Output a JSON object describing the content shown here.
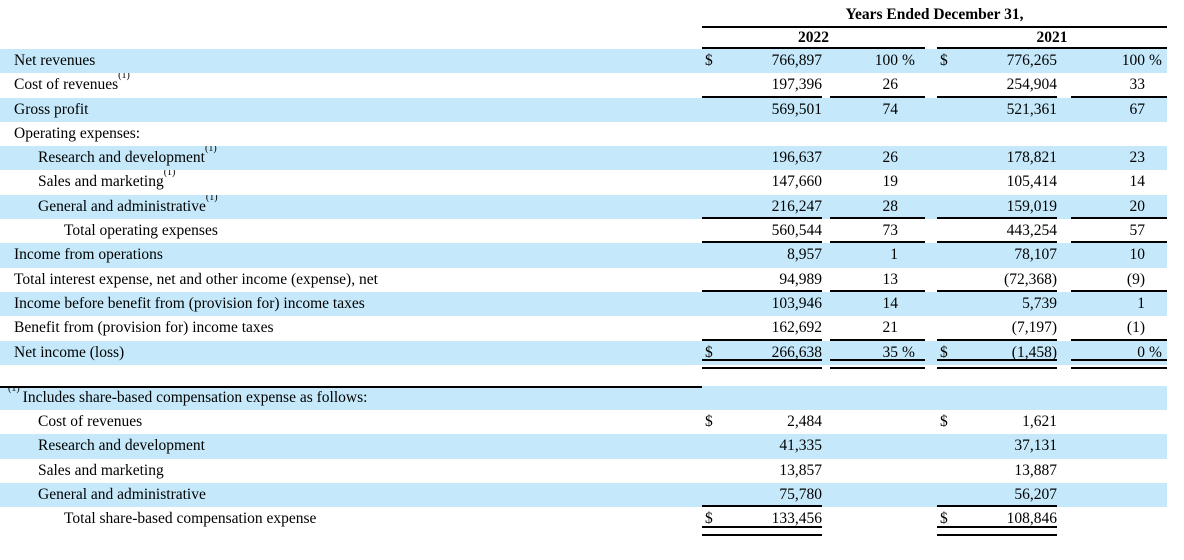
{
  "colors": {
    "row_highlight": "#c5e9fa",
    "rule_color": "#000000"
  },
  "table": {
    "period_header": "Years Ended December 31,",
    "year_columns": [
      "2022",
      "2021"
    ],
    "rows": [
      {
        "label": "Net revenues",
        "sup": "",
        "indent": 0,
        "highlight": true,
        "rule": "none",
        "y2022": {
          "dollar": "$",
          "value": "766,897",
          "pct": "100",
          "pct_sign": "%"
        },
        "y2021": {
          "dollar": "$",
          "value": "776,265",
          "pct": "100",
          "pct_sign": "%"
        }
      },
      {
        "label": "Cost of revenues",
        "sup": "(1)",
        "indent": 0,
        "highlight": false,
        "rule": "single",
        "y2022": {
          "dollar": "",
          "value": "197,396",
          "pct": "26",
          "pct_sign": ""
        },
        "y2021": {
          "dollar": "",
          "value": "254,904",
          "pct": "33",
          "pct_sign": ""
        }
      },
      {
        "label": "Gross profit",
        "sup": "",
        "indent": 0,
        "highlight": true,
        "rule": "none",
        "y2022": {
          "dollar": "",
          "value": "569,501",
          "pct": "74",
          "pct_sign": ""
        },
        "y2021": {
          "dollar": "",
          "value": "521,361",
          "pct": "67",
          "pct_sign": ""
        }
      },
      {
        "label": "Operating expenses:",
        "sup": "",
        "indent": 0,
        "highlight": false,
        "rule": "none",
        "y2022": {
          "dollar": "",
          "value": "",
          "pct": "",
          "pct_sign": ""
        },
        "y2021": {
          "dollar": "",
          "value": "",
          "pct": "",
          "pct_sign": ""
        }
      },
      {
        "label": "Research and development",
        "sup": "(1)",
        "indent": 1,
        "highlight": true,
        "rule": "none",
        "y2022": {
          "dollar": "",
          "value": "196,637",
          "pct": "26",
          "pct_sign": ""
        },
        "y2021": {
          "dollar": "",
          "value": "178,821",
          "pct": "23",
          "pct_sign": ""
        }
      },
      {
        "label": "Sales and marketing",
        "sup": "(1)",
        "indent": 1,
        "highlight": false,
        "rule": "none",
        "y2022": {
          "dollar": "",
          "value": "147,660",
          "pct": "19",
          "pct_sign": ""
        },
        "y2021": {
          "dollar": "",
          "value": "105,414",
          "pct": "14",
          "pct_sign": ""
        }
      },
      {
        "label": "General and administrative",
        "sup": "(1)",
        "indent": 1,
        "highlight": true,
        "rule": "single",
        "y2022": {
          "dollar": "",
          "value": "216,247",
          "pct": "28",
          "pct_sign": ""
        },
        "y2021": {
          "dollar": "",
          "value": "159,019",
          "pct": "20",
          "pct_sign": ""
        }
      },
      {
        "label": "Total operating expenses",
        "sup": "",
        "indent": 2,
        "highlight": false,
        "rule": "single",
        "y2022": {
          "dollar": "",
          "value": "560,544",
          "pct": "73",
          "pct_sign": ""
        },
        "y2021": {
          "dollar": "",
          "value": "443,254",
          "pct": "57",
          "pct_sign": ""
        }
      },
      {
        "label": "Income from operations",
        "sup": "",
        "indent": 0,
        "highlight": true,
        "rule": "none",
        "y2022": {
          "dollar": "",
          "value": "8,957",
          "pct": "1",
          "pct_sign": ""
        },
        "y2021": {
          "dollar": "",
          "value": "78,107",
          "pct": "10",
          "pct_sign": ""
        }
      },
      {
        "label": "Total interest expense, net and other income (expense), net",
        "sup": "",
        "indent": 0,
        "highlight": false,
        "rule": "single",
        "y2022": {
          "dollar": "",
          "value": "94,989",
          "pct": "13",
          "pct_sign": ""
        },
        "y2021": {
          "dollar": "",
          "value": "(72,368)",
          "pct": "(9)",
          "pct_sign": ""
        }
      },
      {
        "label": "Income before benefit from (provision for) income taxes",
        "sup": "",
        "indent": 0,
        "highlight": true,
        "rule": "none",
        "y2022": {
          "dollar": "",
          "value": "103,946",
          "pct": "14",
          "pct_sign": ""
        },
        "y2021": {
          "dollar": "",
          "value": "5,739",
          "pct": "1",
          "pct_sign": ""
        }
      },
      {
        "label": "Benefit from (provision for) income taxes",
        "sup": "",
        "indent": 0,
        "highlight": false,
        "rule": "single",
        "y2022": {
          "dollar": "",
          "value": "162,692",
          "pct": "21",
          "pct_sign": ""
        },
        "y2021": {
          "dollar": "",
          "value": "(7,197)",
          "pct": "(1)",
          "pct_sign": ""
        }
      },
      {
        "label": "Net income (loss)",
        "sup": "",
        "indent": 0,
        "highlight": true,
        "rule": "double",
        "y2022": {
          "dollar": "$",
          "value": "266,638",
          "pct": "35",
          "pct_sign": "%"
        },
        "y2021": {
          "dollar": "$",
          "value": "(1,458)",
          "pct": "0",
          "pct_sign": "%"
        }
      }
    ],
    "footnote_rows": [
      {
        "label": "Includes share-based compensation expense as follows:",
        "sup_pre": "(1)",
        "sup": "",
        "indent": 0,
        "highlight": true,
        "label_topline": true,
        "rule": "none",
        "y2022": {
          "dollar": "",
          "value": "",
          "pct": "",
          "pct_sign": ""
        },
        "y2021": {
          "dollar": "",
          "value": "",
          "pct": "",
          "pct_sign": ""
        }
      },
      {
        "label": "Cost of revenues",
        "sup": "",
        "indent": 1,
        "highlight": false,
        "rule": "none",
        "y2022": {
          "dollar": "$",
          "value": "2,484",
          "pct": "",
          "pct_sign": ""
        },
        "y2021": {
          "dollar": "$",
          "value": "1,621",
          "pct": "",
          "pct_sign": ""
        }
      },
      {
        "label": "Research and development",
        "sup": "",
        "indent": 1,
        "highlight": true,
        "rule": "none",
        "y2022": {
          "dollar": "",
          "value": "41,335",
          "pct": "",
          "pct_sign": ""
        },
        "y2021": {
          "dollar": "",
          "value": "37,131",
          "pct": "",
          "pct_sign": ""
        }
      },
      {
        "label": "Sales and marketing",
        "sup": "",
        "indent": 1,
        "highlight": false,
        "rule": "none",
        "y2022": {
          "dollar": "",
          "value": "13,857",
          "pct": "",
          "pct_sign": ""
        },
        "y2021": {
          "dollar": "",
          "value": "13,887",
          "pct": "",
          "pct_sign": ""
        }
      },
      {
        "label": "General and administrative",
        "sup": "",
        "indent": 1,
        "highlight": true,
        "rule": "single",
        "y2022": {
          "dollar": "",
          "value": "75,780",
          "pct": "",
          "pct_sign": ""
        },
        "y2021": {
          "dollar": "",
          "value": "56,207",
          "pct": "",
          "pct_sign": ""
        }
      },
      {
        "label": "Total share-based compensation expense",
        "sup": "",
        "indent": 2,
        "highlight": false,
        "rule": "double",
        "y2022": {
          "dollar": "$",
          "value": "133,456",
          "pct": "",
          "pct_sign": ""
        },
        "y2021": {
          "dollar": "$",
          "value": "108,846",
          "pct": "",
          "pct_sign": ""
        }
      }
    ]
  }
}
